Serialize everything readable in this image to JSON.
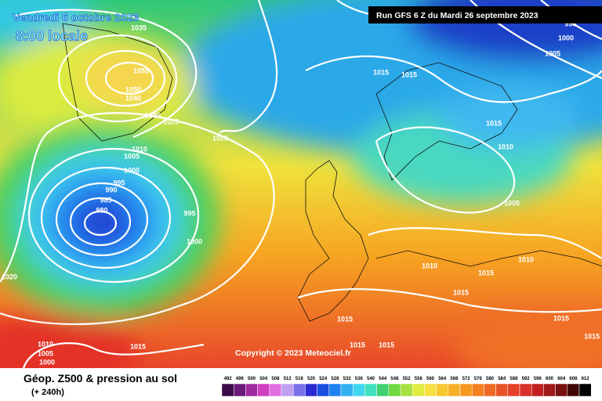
{
  "header": {
    "valid": "Vendredi 6 octobre 2023",
    "time": "8:00 locale",
    "run": "Run GFS 6 Z du Mardi 26 septembre 2023"
  },
  "map": {
    "copyright": "Copyright © 2023 Meteociel.fr",
    "isobar_labels": [
      "1035",
      "1055",
      "1050",
      "1040",
      "1030",
      "1025",
      "1020",
      "1010",
      "1005",
      "1000",
      "995",
      "990",
      "985",
      "980",
      "995",
      "1000",
      "1020",
      "1010",
      "1005",
      "1000",
      "1015",
      "1015",
      "1015",
      "995",
      "1000",
      "1005",
      "1015",
      "1010",
      "1005",
      "1010",
      "1015",
      "1010",
      "1015",
      "1015",
      "1015",
      "1015",
      "1015",
      "1015"
    ]
  },
  "footer": {
    "title": "Géop. Z500 & pression au sol",
    "lead": "(+ 240h)",
    "scale": [
      492,
      496,
      500,
      504,
      508,
      512,
      516,
      520,
      524,
      528,
      532,
      536,
      540,
      544,
      548,
      552,
      556,
      560,
      564,
      568,
      572,
      576,
      580,
      584,
      588,
      592,
      596,
      600,
      604,
      608,
      612
    ]
  }
}
